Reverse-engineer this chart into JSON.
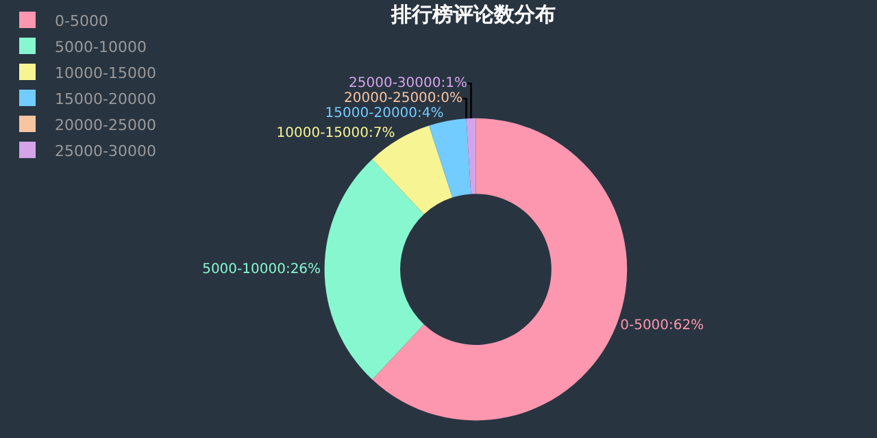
{
  "chart_data": {
    "type": "donut",
    "title": "排行榜评论数分布",
    "categories": [
      "0-5000",
      "5000-10000",
      "10000-15000",
      "15000-20000",
      "20000-25000",
      "25000-30000"
    ],
    "values": [
      62,
      26,
      7,
      4,
      0,
      1
    ],
    "value_labels": [
      "0-5000:62%",
      "5000-10000:26%",
      "10000-15000:7%",
      "15000-20000:4%",
      "20000-25000:0%",
      "25000-30000:1%"
    ],
    "colors": [
      "#fc97af",
      "#87f7cf",
      "#f7f494",
      "#72ccff",
      "#f7c5a0",
      "#d4a4eb"
    ],
    "legend": "top left"
  }
}
